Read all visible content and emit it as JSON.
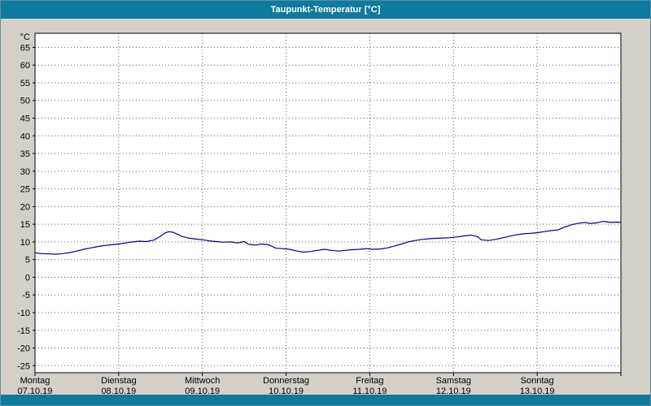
{
  "window": {
    "title": "Taupunkt-Temperatur [°C]"
  },
  "colors": {
    "titlebar": "#0e7a9e",
    "body_bg": "#d4d0c8",
    "plot_bg": "#ffffff",
    "line": "#00008b",
    "grid": "#5a5a5a",
    "axis": "#000000",
    "label_text": "#000000"
  },
  "chart_data": {
    "type": "line",
    "title": "Taupunkt-Temperatur [°C]",
    "ylabel": "°C",
    "ylim": [
      -27,
      69
    ],
    "xlim": [
      0,
      7
    ],
    "grid": "dashed",
    "legend_position": "none",
    "yticks": [
      65,
      60,
      55,
      50,
      45,
      40,
      35,
      30,
      25,
      20,
      15,
      10,
      5,
      0,
      -5,
      -10,
      -15,
      -20,
      -25
    ],
    "x_days": [
      {
        "weekday": "Montag",
        "date": "07.10.19"
      },
      {
        "weekday": "Dienstag",
        "date": "08.10.19"
      },
      {
        "weekday": "Mittwoch",
        "date": "09.10.19"
      },
      {
        "weekday": "Donnerstag",
        "date": "10.10.19"
      },
      {
        "weekday": "Freitag",
        "date": "11.10.19"
      },
      {
        "weekday": "Samstag",
        "date": "12.10.19"
      },
      {
        "weekday": "Sonntag",
        "date": "13.10.19"
      }
    ],
    "series": [
      {
        "name": "Taupunkt-Temperatur",
        "unit": "°C",
        "color": "#00008b",
        "points": [
          [
            0.0,
            6.9
          ],
          [
            0.08,
            6.7
          ],
          [
            0.17,
            6.6
          ],
          [
            0.25,
            6.5
          ],
          [
            0.33,
            6.7
          ],
          [
            0.42,
            7.0
          ],
          [
            0.5,
            7.4
          ],
          [
            0.58,
            7.9
          ],
          [
            0.67,
            8.3
          ],
          [
            0.75,
            8.7
          ],
          [
            0.83,
            9.0
          ],
          [
            0.92,
            9.2
          ],
          [
            1.0,
            9.4
          ],
          [
            1.08,
            9.7
          ],
          [
            1.17,
            10.0
          ],
          [
            1.25,
            10.2
          ],
          [
            1.33,
            10.1
          ],
          [
            1.42,
            10.5
          ],
          [
            1.5,
            11.6
          ],
          [
            1.55,
            12.5
          ],
          [
            1.6,
            12.9
          ],
          [
            1.65,
            12.7
          ],
          [
            1.7,
            12.2
          ],
          [
            1.75,
            11.6
          ],
          [
            1.83,
            11.1
          ],
          [
            1.92,
            10.8
          ],
          [
            2.0,
            10.6
          ],
          [
            2.08,
            10.3
          ],
          [
            2.17,
            10.1
          ],
          [
            2.25,
            9.9
          ],
          [
            2.33,
            10.0
          ],
          [
            2.42,
            9.7
          ],
          [
            2.5,
            10.1
          ],
          [
            2.55,
            9.3
          ],
          [
            2.63,
            9.1
          ],
          [
            2.71,
            9.4
          ],
          [
            2.79,
            9.2
          ],
          [
            2.88,
            8.2
          ],
          [
            2.96,
            8.1
          ],
          [
            3.04,
            7.9
          ],
          [
            3.13,
            7.4
          ],
          [
            3.21,
            7.1
          ],
          [
            3.29,
            7.3
          ],
          [
            3.38,
            7.6
          ],
          [
            3.46,
            7.9
          ],
          [
            3.54,
            7.6
          ],
          [
            3.63,
            7.4
          ],
          [
            3.71,
            7.6
          ],
          [
            3.79,
            7.8
          ],
          [
            3.88,
            7.9
          ],
          [
            3.96,
            8.1
          ],
          [
            4.04,
            7.9
          ],
          [
            4.13,
            8.0
          ],
          [
            4.21,
            8.3
          ],
          [
            4.29,
            8.8
          ],
          [
            4.38,
            9.4
          ],
          [
            4.46,
            10.0
          ],
          [
            4.54,
            10.4
          ],
          [
            4.63,
            10.7
          ],
          [
            4.71,
            10.9
          ],
          [
            4.79,
            11.0
          ],
          [
            4.88,
            11.1
          ],
          [
            4.96,
            11.2
          ],
          [
            5.04,
            11.4
          ],
          [
            5.13,
            11.7
          ],
          [
            5.21,
            11.9
          ],
          [
            5.29,
            11.5
          ],
          [
            5.33,
            10.6
          ],
          [
            5.42,
            10.4
          ],
          [
            5.5,
            10.7
          ],
          [
            5.58,
            11.1
          ],
          [
            5.67,
            11.6
          ],
          [
            5.75,
            12.0
          ],
          [
            5.83,
            12.3
          ],
          [
            5.92,
            12.4
          ],
          [
            6.0,
            12.6
          ],
          [
            6.08,
            12.9
          ],
          [
            6.17,
            13.2
          ],
          [
            6.25,
            13.4
          ],
          [
            6.33,
            14.2
          ],
          [
            6.42,
            14.9
          ],
          [
            6.5,
            15.3
          ],
          [
            6.58,
            15.5
          ],
          [
            6.63,
            15.2
          ],
          [
            6.71,
            15.4
          ],
          [
            6.79,
            15.8
          ],
          [
            6.88,
            15.5
          ],
          [
            6.96,
            15.6
          ],
          [
            7.0,
            15.5
          ]
        ]
      }
    ]
  }
}
